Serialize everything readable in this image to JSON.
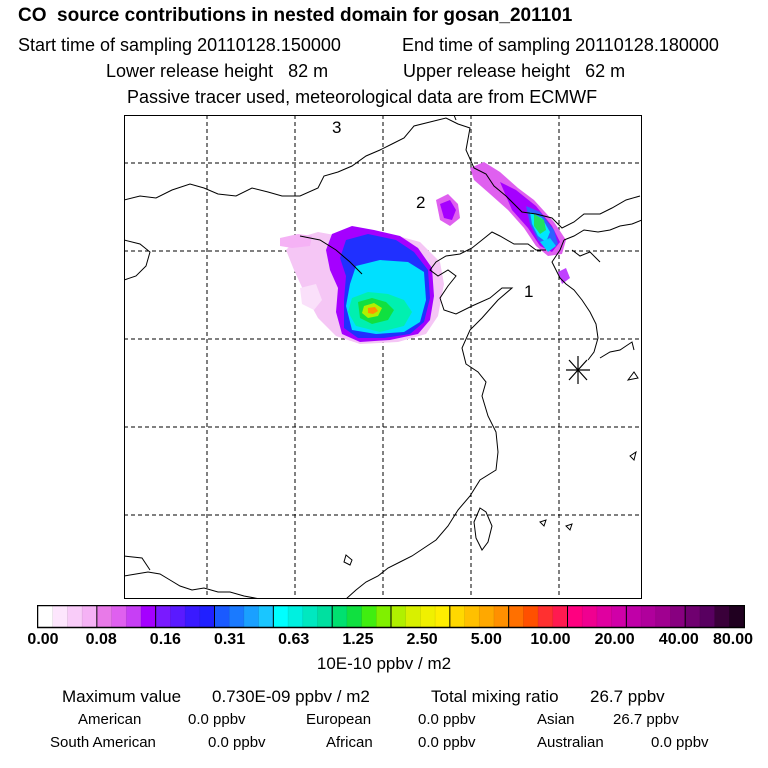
{
  "title": "CO  source contributions in nested domain for gosan_201101",
  "sampling": {
    "start_label": "Start time of sampling 20110128.150000",
    "end_label": "End time of sampling 20110128.180000"
  },
  "release": {
    "lower_label": "Lower release height   82 m",
    "upper_label": "Upper release height   62 m"
  },
  "note": "Passive tracer used, meteorological data are from ECMWF",
  "map": {
    "region_labels": [
      "1",
      "2",
      "3"
    ],
    "receptor_marker": "asterisk-icon"
  },
  "colorbar": {
    "ticks": [
      "0.00",
      "0.08",
      "0.16",
      "0.31",
      "0.63",
      "1.25",
      "2.50",
      "5.00",
      "10.00",
      "20.00",
      "40.00",
      "80.00"
    ],
    "units": "10E-10 ppbv / m2",
    "colors": [
      "#ffffff",
      "#fde6fd",
      "#f9ccf9",
      "#f5b2f5",
      "#e87ae8",
      "#df60ef",
      "#c73ff5",
      "#a500ff",
      "#7a1aff",
      "#5a1aff",
      "#3a1aff",
      "#2020ff",
      "#1a5aff",
      "#1a7aff",
      "#1aa0ff",
      "#1ac6ff",
      "#00ffff",
      "#00f0e0",
      "#00e8c0",
      "#00e0a0",
      "#00e070",
      "#10e040",
      "#40ee10",
      "#80f000",
      "#b0f000",
      "#d8f000",
      "#f0f000",
      "#ffee00",
      "#ffd800",
      "#ffc000",
      "#ffa800",
      "#ff9000",
      "#ff7000",
      "#ff5000",
      "#ff3030",
      "#ff1a50",
      "#ff0080",
      "#f00090",
      "#e000a0",
      "#d000a8",
      "#c000a8",
      "#b0009c",
      "#a00090",
      "#880080",
      "#700070",
      "#580060",
      "#3a003a",
      "#200020"
    ]
  },
  "summary": {
    "max_label": "Maximum value",
    "max_value": "0.730E-09 ppbv / m2",
    "total_label": "Total mixing ratio",
    "total_value": "26.7 ppbv",
    "sources": [
      {
        "name": "American",
        "value": "0.0 ppbv"
      },
      {
        "name": "European",
        "value": "0.0 ppbv"
      },
      {
        "name": "Asian",
        "value": "26.7 ppbv"
      },
      {
        "name": "South American",
        "value": "0.0 ppbv"
      },
      {
        "name": "African",
        "value": "0.0 ppbv"
      },
      {
        "name": "Australian",
        "value": "0.0 ppbv"
      }
    ]
  }
}
